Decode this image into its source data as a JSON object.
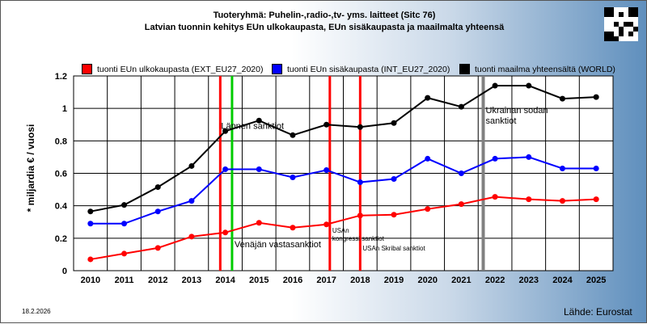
{
  "header": {
    "title_line1": "Tuoteryhmä: Puhelin-,radio-,tv- yms. laitteet (Sitc 76)",
    "title_line2": "Latvian tuonnin kehitys EUn ulkokaupasta, EUn sisäkaupasta ja maailmalta yhteensä"
  },
  "footer": {
    "date": "18.2.2026",
    "source": "Lähde: Eurostat"
  },
  "colors": {
    "ext": "#ff0000",
    "int": "#0000ff",
    "world": "#000000"
  },
  "chart_data": {
    "type": "line",
    "ylabel": "* miljardia € / vuosi",
    "ylim": [
      0,
      1.2
    ],
    "yticks": [
      "0",
      "0.2",
      "0.4",
      "0.6",
      "0.8",
      "1",
      "1.2"
    ],
    "categories": [
      "2010",
      "2011",
      "2012",
      "2013",
      "2014",
      "2015",
      "2016",
      "2017",
      "2018",
      "2019",
      "2020",
      "2021",
      "2022",
      "2023",
      "2024",
      "2025"
    ],
    "grid": true,
    "legend_position": "top",
    "series": [
      {
        "key": "ext",
        "name": "tuonti EUn ulkokaupasta (EXT_EU27_2020)",
        "color": "#ff0000",
        "values": [
          0.07,
          0.105,
          0.14,
          0.21,
          0.235,
          0.295,
          0.265,
          0.285,
          0.34,
          0.345,
          0.38,
          0.41,
          0.455,
          0.44,
          0.43,
          0.44
        ]
      },
      {
        "key": "int",
        "name": "tuonti EUn sisäkaupasta (INT_EU27_2020)",
        "color": "#0000ff",
        "values": [
          0.29,
          0.29,
          0.365,
          0.43,
          0.625,
          0.625,
          0.575,
          0.62,
          0.545,
          0.565,
          0.69,
          0.6,
          0.69,
          0.7,
          0.63,
          0.63
        ]
      },
      {
        "key": "world",
        "name": "tuonti maailma yhteensältä (WORLD)",
        "color": "#000000",
        "values": [
          0.365,
          0.405,
          0.515,
          0.645,
          0.86,
          0.925,
          0.835,
          0.9,
          0.885,
          0.91,
          1.065,
          1.01,
          1.14,
          1.14,
          1.06,
          1.07
        ]
      }
    ],
    "event_lines": [
      {
        "x": 2013.85,
        "color": "#ff0000",
        "label": "Lännen sanktiot"
      },
      {
        "x": 2014.2,
        "color": "#00cc00",
        "label": "Venäjän vastasanktiot"
      },
      {
        "x": 2017.1,
        "color": "#ff0000",
        "label": "USAn kongressi sanktiot"
      },
      {
        "x": 2018.0,
        "color": "#ff0000",
        "label": "USAn Skribal sanktiot"
      },
      {
        "x": 2021.65,
        "color": "#808080",
        "label": "Ukrainan sodan sanktiot"
      }
    ]
  }
}
